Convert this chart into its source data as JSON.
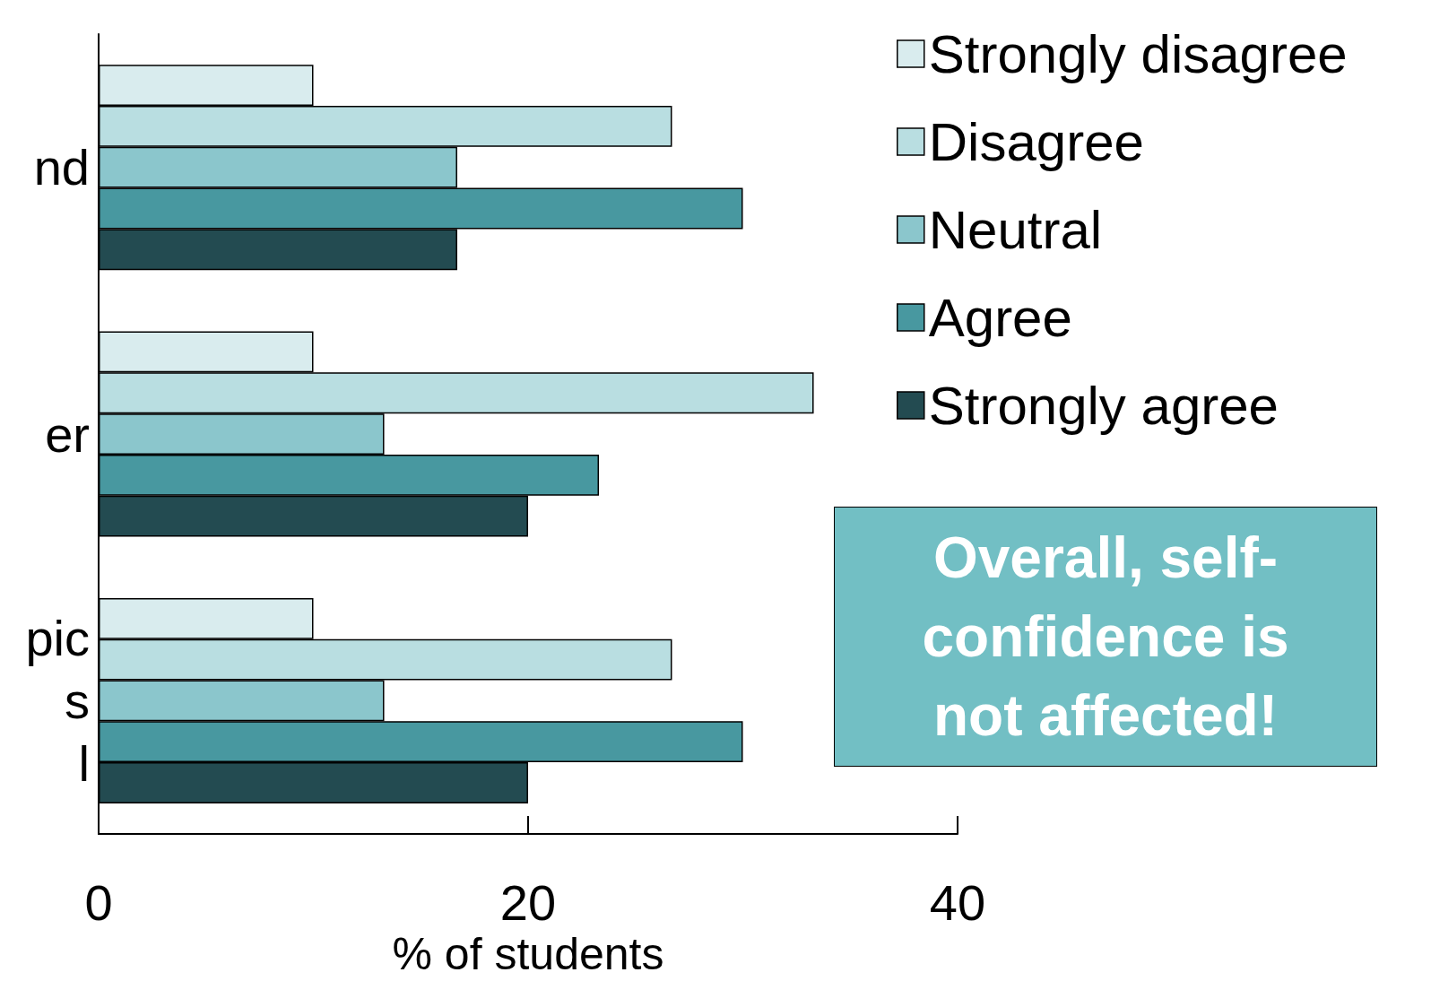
{
  "chart_data": {
    "type": "bar",
    "orientation": "horizontal",
    "xlabel": "% of students",
    "categories": [
      "nd",
      "er",
      "pic\ns\nl"
    ],
    "series": [
      {
        "name": "Strongly disagree",
        "color": "#d9ecee",
        "values": [
          10,
          10,
          10
        ]
      },
      {
        "name": "Disagree",
        "color": "#b9dee1",
        "values": [
          26.7,
          33.3,
          26.7
        ]
      },
      {
        "name": "Neutral",
        "color": "#8bc6cc",
        "values": [
          16.7,
          13.3,
          13.3
        ]
      },
      {
        "name": "Agree",
        "color": "#4898a0",
        "values": [
          30,
          23.3,
          30
        ]
      },
      {
        "name": "Strongly agree",
        "color": "#234b51",
        "values": [
          16.7,
          20,
          20
        ]
      }
    ],
    "xlim": [
      0,
      40
    ],
    "xticks": [
      0,
      20,
      40
    ],
    "grid": false,
    "legend": "top right",
    "annotations": [
      "Overall, self-confidence is not affected!"
    ]
  }
}
